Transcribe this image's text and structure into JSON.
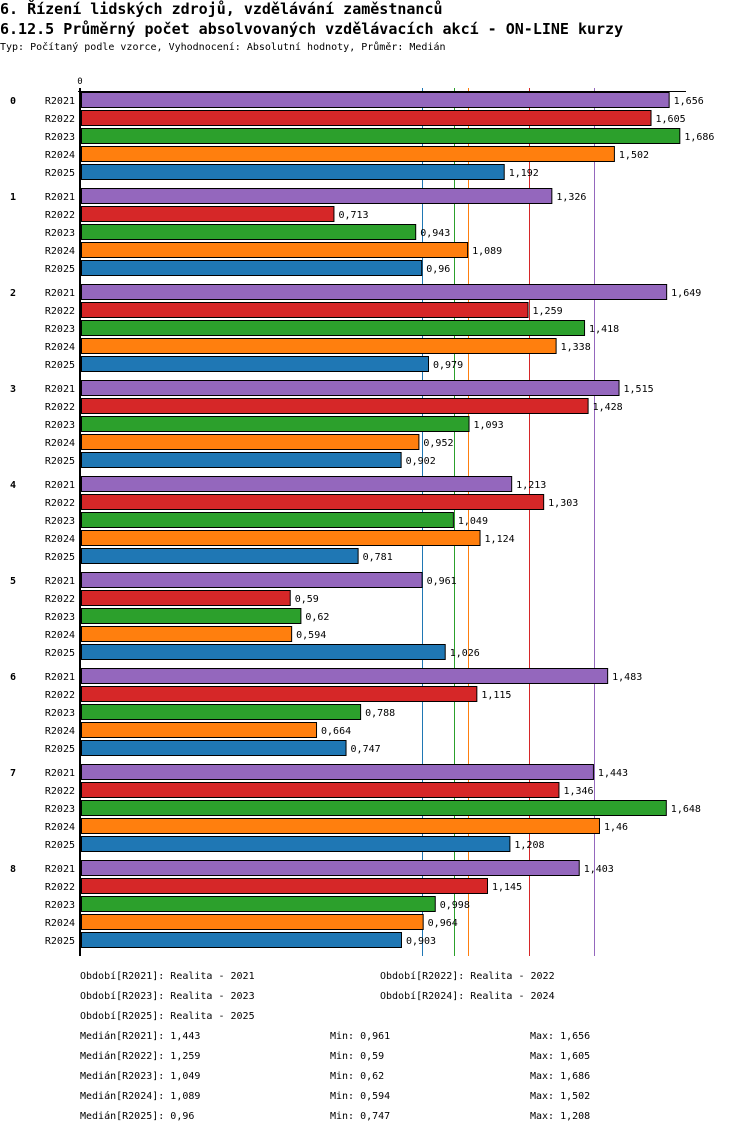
{
  "header": {
    "title": "6. Řízení lidských zdrojů, vzdělávání zaměstnanců",
    "chart_title": "6.12.5 Průměrný počet absolvovaných vzdělávacích akcí - ON-LINE kurzy",
    "subtitle": "Typ: Počítaný podle vzorce, Vyhodnocení: Absolutní hodnoty, Průměr: Medián"
  },
  "chart_data": {
    "type": "bar",
    "orientation": "horizontal",
    "title": "6.12.5 Průměrný počet absolvovaných vzdělávacích akcí - ON-LINE kurzy",
    "xlabel": "",
    "ylabel": "",
    "x_tick_labels": [
      "0"
    ],
    "xlim": [
      0,
      1.702
    ],
    "grid": false,
    "decimal_separator": ",",
    "categories": [
      "0",
      "1",
      "2",
      "3",
      "4",
      "5",
      "6",
      "7",
      "8"
    ],
    "series": [
      {
        "name": "R2021",
        "color": "#9467bd",
        "values": [
          1.656,
          1.326,
          1.649,
          1.515,
          1.213,
          0.961,
          1.483,
          1.443,
          1.403
        ],
        "median": 1.443
      },
      {
        "name": "R2022",
        "color": "#d62728",
        "values": [
          1.605,
          0.713,
          1.259,
          1.428,
          1.303,
          0.59,
          1.115,
          1.346,
          1.145
        ],
        "median": 1.259
      },
      {
        "name": "R2023",
        "color": "#2ca02c",
        "values": [
          1.686,
          0.943,
          1.418,
          1.093,
          1.049,
          0.62,
          0.788,
          1.648,
          0.998
        ],
        "median": 1.049
      },
      {
        "name": "R2024",
        "color": "#ff7f0e",
        "values": [
          1.502,
          1.089,
          1.338,
          0.952,
          1.124,
          0.594,
          0.664,
          1.46,
          0.964
        ],
        "median": 1.089
      },
      {
        "name": "R2025",
        "color": "#1f77b4",
        "values": [
          1.192,
          0.96,
          0.979,
          0.902,
          0.781,
          1.026,
          0.747,
          1.208,
          0.903
        ],
        "median": 0.96
      }
    ],
    "median_lines": true
  },
  "legend": {
    "periods": [
      "Období[R2021]: Realita - 2021",
      "Období[R2022]: Realita - 2022",
      "Období[R2023]: Realita - 2023",
      "Období[R2024]: Realita - 2024",
      "Období[R2025]: Realita - 2025"
    ],
    "stats": [
      {
        "median": "Medián[R2021]: 1,443",
        "min": "Min: 0,961",
        "max": "Max: 1,656"
      },
      {
        "median": "Medián[R2022]: 1,259",
        "min": "Min: 0,59",
        "max": "Max: 1,605"
      },
      {
        "median": "Medián[R2023]: 1,049",
        "min": "Min: 0,62",
        "max": "Max: 1,686"
      },
      {
        "median": "Medián[R2024]: 1,089",
        "min": "Min: 0,594",
        "max": "Max: 1,502"
      },
      {
        "median": "Medián[R2025]: 0,96",
        "min": "Min: 0,747",
        "max": "Max: 1,208"
      }
    ]
  }
}
